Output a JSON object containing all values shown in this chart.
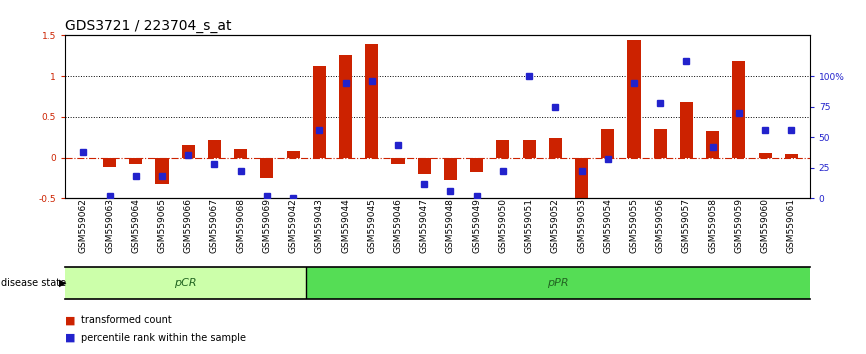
{
  "title": "GDS3721 / 223704_s_at",
  "samples": [
    "GSM559062",
    "GSM559063",
    "GSM559064",
    "GSM559065",
    "GSM559066",
    "GSM559067",
    "GSM559068",
    "GSM559069",
    "GSM559042",
    "GSM559043",
    "GSM559044",
    "GSM559045",
    "GSM559046",
    "GSM559047",
    "GSM559048",
    "GSM559049",
    "GSM559050",
    "GSM559051",
    "GSM559052",
    "GSM559053",
    "GSM559054",
    "GSM559055",
    "GSM559056",
    "GSM559057",
    "GSM559058",
    "GSM559059",
    "GSM559060",
    "GSM559061"
  ],
  "transformed_count": [
    0.0,
    -0.12,
    -0.08,
    -0.32,
    0.16,
    0.22,
    0.1,
    -0.25,
    0.08,
    1.12,
    1.26,
    1.4,
    -0.08,
    -0.2,
    -0.28,
    -0.18,
    0.22,
    0.22,
    0.24,
    -0.54,
    0.35,
    1.44,
    0.35,
    0.68,
    0.32,
    1.18,
    0.05,
    0.04
  ],
  "percentile_rank": [
    38,
    2,
    18,
    18,
    35,
    28,
    22,
    2,
    0,
    56,
    94,
    96,
    44,
    12,
    6,
    2,
    22,
    100,
    75,
    22,
    32,
    94,
    78,
    112,
    42,
    70,
    56,
    56
  ],
  "pCR_count": 9,
  "pPR_count": 19,
  "ylim_left": [
    -0.5,
    1.5
  ],
  "ylim_right": [
    0,
    133.33
  ],
  "bar_color": "#cc2200",
  "dot_color": "#2222cc",
  "pCR_color": "#ccffaa",
  "pPR_color": "#55dd55",
  "pCR_label": "pCR",
  "pPR_label": "pPR",
  "disease_state_label": "disease state",
  "legend_bar_label": "transformed count",
  "legend_dot_label": "percentile rank within the sample",
  "gridline_values": [
    0.5,
    1.0
  ],
  "title_fontsize": 10,
  "tick_fontsize": 6.5,
  "label_fontsize": 8,
  "background_color": "#ffffff"
}
